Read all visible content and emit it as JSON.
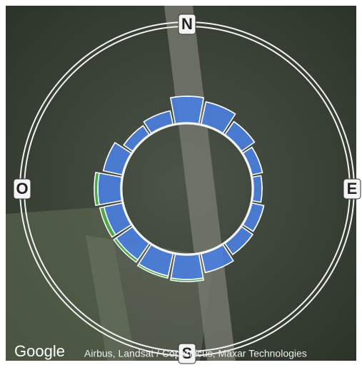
{
  "chart_data": {
    "type": "windrose",
    "compass_labels": [
      "N",
      "E",
      "S",
      "O"
    ],
    "rlim": [
      0,
      40
    ],
    "series": [
      {
        "color": "#4a7fe0",
        "values": [
          37,
          32,
          22,
          15,
          12,
          17,
          19,
          27,
          34,
          32,
          28,
          26,
          32,
          27,
          15,
          19
        ]
      },
      {
        "color": "#4caf50",
        "values": [
          0,
          0,
          0,
          0,
          0,
          0,
          0,
          0,
          3,
          3,
          4,
          6,
          5,
          0,
          0,
          0
        ]
      }
    ]
  },
  "map": {
    "logo": "Google",
    "attribution": "Airbus, Landsat / Copernicus, Maxar Technologies"
  }
}
